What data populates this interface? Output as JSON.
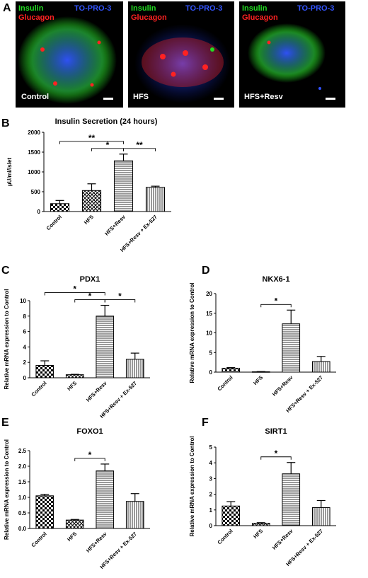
{
  "panel_a": {
    "label": "A",
    "images": [
      {
        "name": "control",
        "caption": "Control",
        "stain_labels": [
          "Insulin",
          "TO-PRO-3",
          "Glucagon"
        ]
      },
      {
        "name": "hfs",
        "caption": "HFS",
        "stain_labels": [
          "Insulin",
          "TO-PRO-3",
          "Glucagon"
        ]
      },
      {
        "name": "hfs-resv",
        "caption": "HFS+Resv",
        "stain_labels": [
          "Insulin",
          "TO-PRO-3",
          "Glucagon"
        ]
      }
    ],
    "colors": {
      "insulin": "#22dd22",
      "to_pro_3": "#2244ff",
      "glucagon": "#ff2222",
      "background": "#000000"
    }
  },
  "chart_data": [
    {
      "id": "B",
      "panel_label": "B",
      "type": "bar",
      "title": "Insulin Secretion (24 hours)",
      "ylabel": "µU/ml/islet",
      "categories": [
        "Control",
        "HFS",
        "HFS+Resv",
        "HFS+Resv + Ex-527"
      ],
      "values": [
        200,
        530,
        1280,
        610
      ],
      "errors": [
        80,
        170,
        170,
        30
      ],
      "ylim": [
        0,
        2000
      ],
      "yticks": [
        "0",
        "500",
        "1000",
        "1500",
        "2000"
      ],
      "significance": [
        {
          "from": 0,
          "to": 2,
          "label": "**"
        },
        {
          "from": 1,
          "to": 2,
          "label": "*"
        },
        {
          "from": 2,
          "to": 3,
          "label": "**"
        }
      ]
    },
    {
      "id": "C",
      "panel_label": "C",
      "type": "bar",
      "title": "PDX1",
      "ylabel": "Relative mRNA expression to Control",
      "categories": [
        "Control",
        "HFS",
        "HFS+Resv",
        "HFS+Resv + Ex-527"
      ],
      "values": [
        1.6,
        0.4,
        8.0,
        2.4
      ],
      "errors": [
        0.6,
        0.05,
        1.4,
        0.8
      ],
      "ylim": [
        0,
        10
      ],
      "yticks": [
        "0",
        "2",
        "4",
        "6",
        "8",
        "10"
      ],
      "significance": [
        {
          "from": 0,
          "to": 2,
          "label": "*"
        },
        {
          "from": 1,
          "to": 2,
          "label": "*"
        },
        {
          "from": 2,
          "to": 3,
          "label": "*"
        }
      ]
    },
    {
      "id": "D",
      "panel_label": "D",
      "type": "bar",
      "title": "NKX6-1",
      "ylabel": "Relative mRNA expression to Control",
      "categories": [
        "Control",
        "HFS",
        "HFS+Resv",
        "HFS+Resv + Ex-527"
      ],
      "values": [
        1.0,
        0.1,
        12.3,
        2.7
      ],
      "errors": [
        0.15,
        0.05,
        3.5,
        1.3
      ],
      "ylim": [
        0,
        20
      ],
      "yticks": [
        "0",
        "5",
        "10",
        "15",
        "20"
      ],
      "significance": [
        {
          "from": 1,
          "to": 2,
          "label": "*"
        }
      ]
    },
    {
      "id": "E",
      "panel_label": "E",
      "type": "bar",
      "title": "FOXO1",
      "ylabel": "Relative mRNA expression to Control",
      "categories": [
        "Control",
        "HFS",
        "HFS+Resv",
        "HFS+Resv + Ex-527"
      ],
      "values": [
        1.05,
        0.27,
        1.85,
        0.87
      ],
      "errors": [
        0.05,
        0.02,
        0.22,
        0.25
      ],
      "ylim": [
        0,
        2.5
      ],
      "yticks": [
        "0.0",
        "0.5",
        "1.0",
        "1.5",
        "2.0",
        "2.5"
      ],
      "significance": [
        {
          "from": 1,
          "to": 2,
          "label": "*"
        }
      ]
    },
    {
      "id": "F",
      "panel_label": "F",
      "type": "bar",
      "title": "SIRT1",
      "ylabel": "Relative mRNA expression to Control",
      "categories": [
        "Control",
        "HFS",
        "HFS+Resv",
        "HFS+Resv + Ex-527"
      ],
      "values": [
        1.25,
        0.15,
        3.3,
        1.15
      ],
      "errors": [
        0.28,
        0.04,
        0.72,
        0.45
      ],
      "ylim": [
        0,
        5
      ],
      "yticks": [
        "0",
        "1",
        "2",
        "3",
        "4",
        "5"
      ],
      "significance": [
        {
          "from": 1,
          "to": 2,
          "label": "*"
        }
      ]
    }
  ]
}
